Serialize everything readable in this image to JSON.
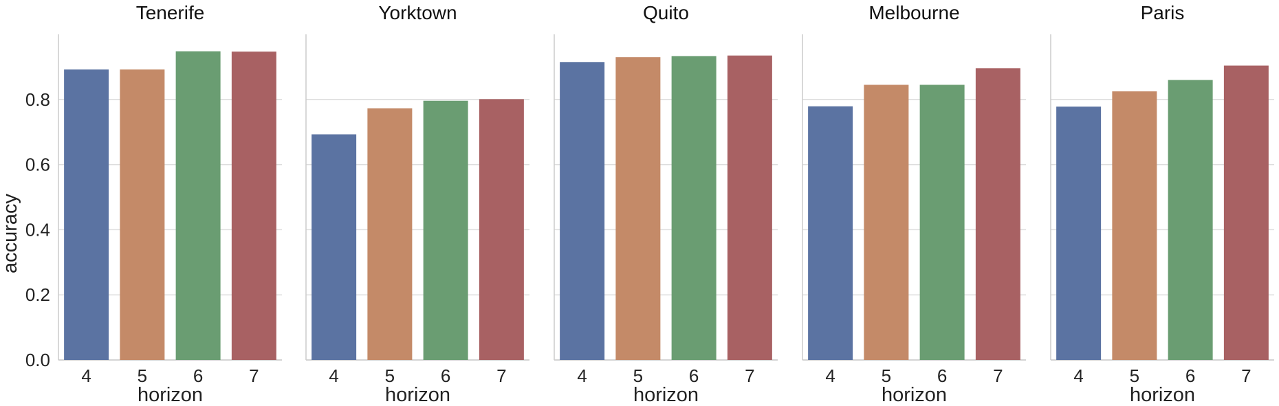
{
  "chart_data": {
    "type": "bar",
    "ylabel": "accuracy",
    "xlabel": "horizon",
    "ylim": [
      0,
      1.0
    ],
    "yticks": [
      "0.0",
      "0.2",
      "0.4",
      "0.6",
      "0.8"
    ],
    "grid": true,
    "colors": [
      "#5b73a2",
      "#c48a68",
      "#6a9d72",
      "#a86163"
    ],
    "categories": [
      "4",
      "5",
      "6",
      "7"
    ],
    "panels": [
      {
        "title": "Tenerife",
        "values": [
          0.892,
          0.892,
          0.948,
          0.947
        ]
      },
      {
        "title": "Yorktown",
        "values": [
          0.693,
          0.773,
          0.796,
          0.801
        ]
      },
      {
        "title": "Quito",
        "values": [
          0.915,
          0.93,
          0.933,
          0.935
        ]
      },
      {
        "title": "Melbourne",
        "values": [
          0.779,
          0.845,
          0.845,
          0.896
        ]
      },
      {
        "title": "Paris",
        "values": [
          0.778,
          0.825,
          0.86,
          0.904
        ]
      }
    ]
  }
}
